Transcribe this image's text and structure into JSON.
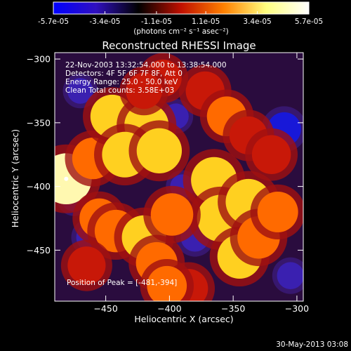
{
  "chart_data": {
    "type": "heatmap",
    "title": "Reconstructed RHESSI Image",
    "colorbar": {
      "ticks": [
        "-5.7e-05",
        "-3.4e-05",
        "-1.1e-05",
        "1.1e-05",
        "3.4e-05",
        "5.7e-05"
      ],
      "label": "(photons cm⁻² s⁻¹ asec⁻²)",
      "range": [
        -5.7e-05,
        5.7e-05
      ],
      "colormap": [
        "#0000ff",
        "#3010c0",
        "#000000",
        "#c01000",
        "#ff8000",
        "#ffff80",
        "#ffffff"
      ]
    },
    "xlabel": "Heliocentric X (arcsec)",
    "ylabel": "Heliocentric Y (arcsec)",
    "xlim": [
      -490,
      -295
    ],
    "ylim": [
      -490,
      -295
    ],
    "xticks": [
      -450,
      -400,
      -350,
      -300
    ],
    "yticks": [
      -300,
      -350,
      -400,
      -450
    ],
    "annotations": {
      "time_range": "22-Nov-2003 13:32:54.000 to 13:38:54.000",
      "detectors": "Detectors: 4F 5F 6F 7F 8F, Att 0",
      "energy": "Energy Range: 25.0 - 50.0 keV",
      "clean": "Clean    Total counts: 3.58E+03",
      "peak": "Position of Peak = [-481,-394]"
    },
    "sources": [
      {
        "x": -481,
        "y": -394,
        "v": 5.7e-05
      },
      {
        "x": -460,
        "y": -378,
        "v": 3.6e-05
      },
      {
        "x": -445,
        "y": -345,
        "v": 4e-05
      },
      {
        "x": -418,
        "y": -352,
        "v": 4.2e-05
      },
      {
        "x": -435,
        "y": -375,
        "v": 4.5e-05
      },
      {
        "x": -408,
        "y": -372,
        "v": 4.4e-05
      },
      {
        "x": -372,
        "y": -325,
        "v": 3e-05
      },
      {
        "x": -355,
        "y": -345,
        "v": 3.2e-05
      },
      {
        "x": -338,
        "y": -360,
        "v": 2.8e-05
      },
      {
        "x": -320,
        "y": -375,
        "v": 3e-05
      },
      {
        "x": -405,
        "y": -315,
        "v": 2.6e-05
      },
      {
        "x": -420,
        "y": -325,
        "v": 2.4e-05
      },
      {
        "x": -365,
        "y": -395,
        "v": 4.6e-05
      },
      {
        "x": -360,
        "y": -425,
        "v": 4.8e-05
      },
      {
        "x": -338,
        "y": -412,
        "v": 4.5e-05
      },
      {
        "x": -345,
        "y": -455,
        "v": 4.2e-05
      },
      {
        "x": -330,
        "y": -440,
        "v": 3.8e-05
      },
      {
        "x": -315,
        "y": -420,
        "v": 3.4e-05
      },
      {
        "x": -455,
        "y": -425,
        "v": 3.2e-05
      },
      {
        "x": -442,
        "y": -435,
        "v": 3.8e-05
      },
      {
        "x": -420,
        "y": -440,
        "v": 4.2e-05
      },
      {
        "x": -398,
        "y": -422,
        "v": 3.8e-05
      },
      {
        "x": -410,
        "y": -460,
        "v": 3.6e-05
      },
      {
        "x": -385,
        "y": -480,
        "v": 3e-05
      },
      {
        "x": -402,
        "y": -478,
        "v": 3.2e-05
      },
      {
        "x": -465,
        "y": -462,
        "v": 2.8e-05
      },
      {
        "x": -380,
        "y": -440,
        "v": -3e-05
      },
      {
        "x": -470,
        "y": -325,
        "v": -2e-05
      },
      {
        "x": -475,
        "y": -410,
        "v": -1.6e-05
      },
      {
        "x": -310,
        "y": -355,
        "v": -5e-05
      },
      {
        "x": -395,
        "y": -345,
        "v": -2e-05
      },
      {
        "x": -462,
        "y": -440,
        "v": -3e-05
      },
      {
        "x": -305,
        "y": -470,
        "v": -2.5e-05
      },
      {
        "x": -390,
        "y": -400,
        "v": -1.4e-05
      }
    ],
    "peak": {
      "x": -481,
      "y": -394
    }
  },
  "footer": {
    "date": "30-May-2013 03:08"
  }
}
